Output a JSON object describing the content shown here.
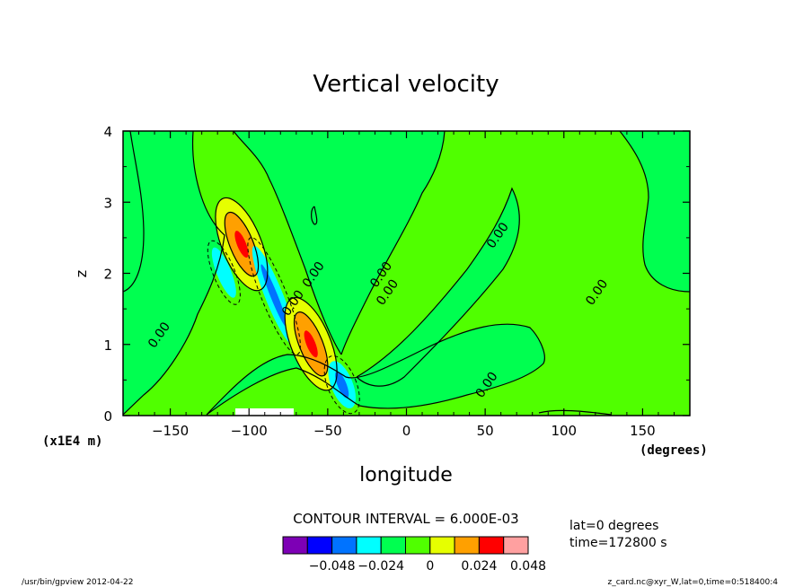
{
  "chart_data": {
    "type": "heatmap",
    "title": "Vertical velocity",
    "xlabel": "longitude",
    "x_unit": "(degrees)",
    "ylabel": "z",
    "y_unit": "(x1E4 m)",
    "xlim": [
      -180,
      180
    ],
    "ylim": [
      0,
      4
    ],
    "x_ticks": [
      -150,
      -100,
      -50,
      0,
      50,
      100,
      150
    ],
    "y_ticks": [
      0,
      1,
      2,
      3,
      4
    ],
    "contour_interval_text": "CONTOUR INTERVAL = 6.000E-03",
    "contour_labels": [
      {
        "text": "0.00",
        "lon": -155,
        "z": 1.1
      },
      {
        "text": "0.00",
        "lon": -57,
        "z": 1.95
      },
      {
        "text": "0.00",
        "lon": -70,
        "z": 1.55
      },
      {
        "text": "0.00",
        "lon": -14,
        "z": 1.95
      },
      {
        "text": "0.00",
        "lon": -10,
        "z": 1.7
      },
      {
        "text": "0.00",
        "lon": 60,
        "z": 2.5
      },
      {
        "text": "0.00",
        "lon": 123,
        "z": 1.7
      },
      {
        "text": "0.00",
        "lon": 53,
        "z": 0.4
      }
    ],
    "colorbar": {
      "colors": [
        "#7d00b5",
        "#0000ff",
        "#0073ff",
        "#00ffff",
        "#00ff50",
        "#50ff00",
        "#e6ff00",
        "#ffa000",
        "#ff0000",
        "#ffa0a0"
      ],
      "tick_labels": [
        "-0.048",
        "-0.024",
        "0",
        "0.024",
        "0.048"
      ]
    },
    "info": {
      "lat": "lat=0 degrees",
      "time": "time=172800 s"
    },
    "footer_left": "/usr/bin/gpview  2012-04-22",
    "footer_right": "z_card.nc@xyr_W,lat=0,time=0:518400:4"
  }
}
